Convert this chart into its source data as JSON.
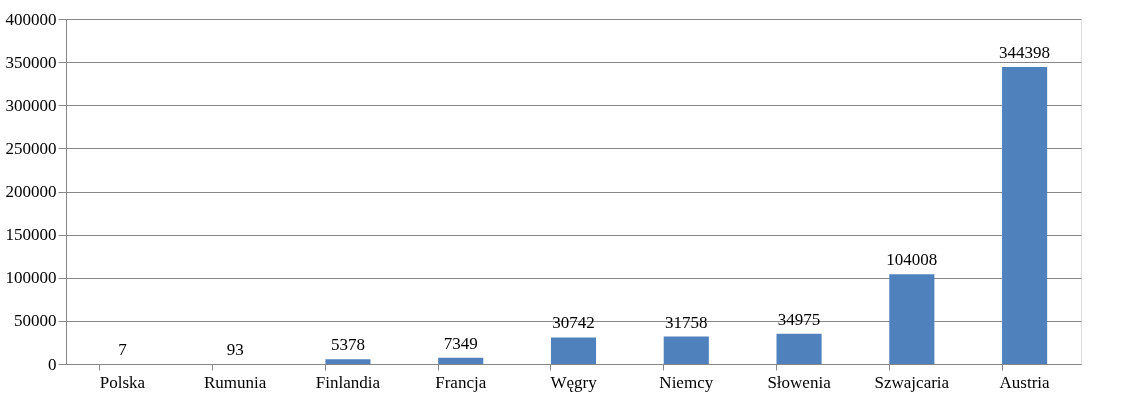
{
  "chart_data": {
    "type": "bar",
    "categories": [
      "Polska",
      "Rumunia",
      "Finlandia",
      "Francja",
      "Węgry",
      "Niemcy",
      "Słowenia",
      "Szwajcaria",
      "Austria"
    ],
    "values": [
      7,
      93,
      5378,
      7349,
      30742,
      31758,
      34975,
      104008,
      344398
    ],
    "color": "#4f81bd",
    "ylim": [
      0,
      400000
    ],
    "yticks": [
      0,
      50000,
      100000,
      150000,
      200000,
      250000,
      300000,
      350000,
      400000
    ],
    "grid": "y",
    "data_labels": true
  }
}
